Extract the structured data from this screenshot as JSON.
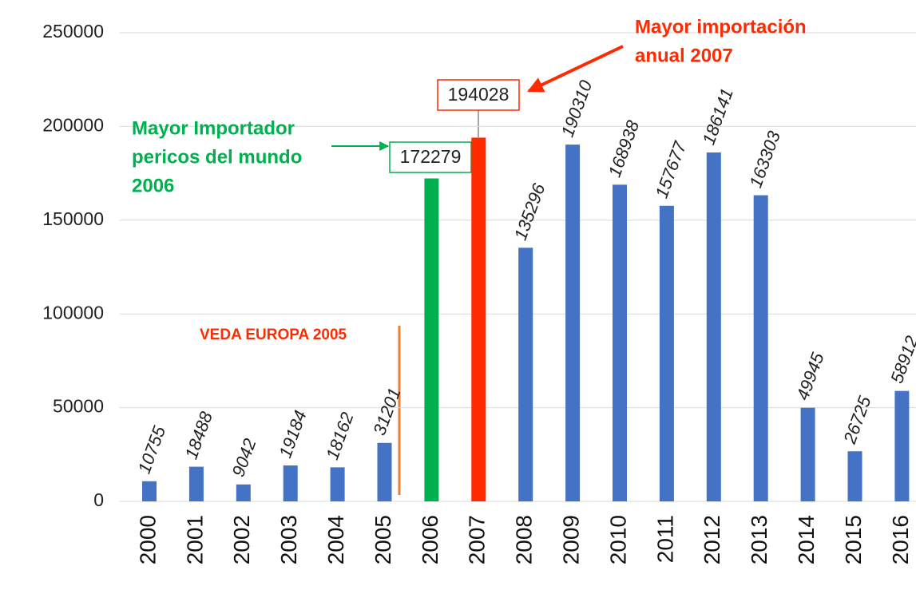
{
  "chart_data": {
    "type": "bar",
    "categories": [
      "2000",
      "2001",
      "2002",
      "2003",
      "2004",
      "2005",
      "2006",
      "2007",
      "2008",
      "2009",
      "2010",
      "2011",
      "2012",
      "2013",
      "2014",
      "2015",
      "2016"
    ],
    "values": [
      10755,
      18488,
      9042,
      19184,
      18162,
      31201,
      172279,
      194028,
      135296,
      190310,
      168938,
      157677,
      186141,
      163303,
      49945,
      26725,
      58912
    ],
    "colors": [
      "#4472c4",
      "#4472c4",
      "#4472c4",
      "#4472c4",
      "#4472c4",
      "#4472c4",
      "#00b050",
      "#ff2a00",
      "#4472c4",
      "#4472c4",
      "#4472c4",
      "#4472c4",
      "#4472c4",
      "#4472c4",
      "#4472c4",
      "#4472c4",
      "#4472c4"
    ],
    "ylim": [
      0,
      250000
    ],
    "yticks": [
      0,
      50000,
      100000,
      150000,
      200000,
      250000
    ],
    "grid": true,
    "annotations": [
      {
        "lines": [
          "Mayor importación",
          "anual 2007"
        ],
        "color": "#ff2a00"
      },
      {
        "lines": [
          "Mayor Importador",
          "pericos del mundo",
          "2006"
        ],
        "color": "#00b050"
      },
      {
        "lines": [
          "VEDA EUROPA 2005"
        ],
        "color": "#ff2a00"
      }
    ]
  }
}
